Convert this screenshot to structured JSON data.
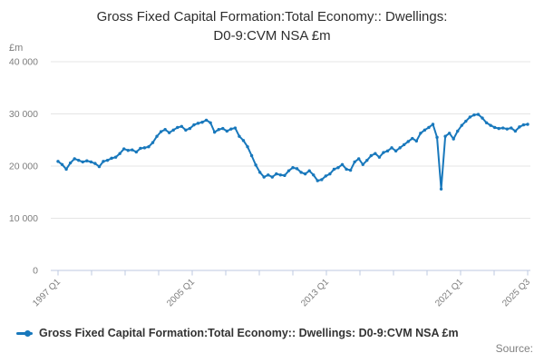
{
  "title_line1": "Gross Fixed Capital Formation:Total Economy:: Dwellings:",
  "title_line2": "D0-9:CVM NSA £m",
  "legend": {
    "label": "Gross Fixed Capital Formation:Total Economy:: Dwellings: D0-9:CVM NSA £m"
  },
  "source_label": "Source:",
  "colors": {
    "line": "#1878bc",
    "grid": "#e4e4e4",
    "axis": "#bcc8e0",
    "tick_label": "#7d7d7d",
    "title": "#2e2e2e"
  },
  "chart_data": {
    "type": "line",
    "title": "Gross Fixed Capital Formation:Total Economy:: Dwellings: D0-9:CVM NSA £m",
    "ylabel_unit": "£m",
    "ylim": [
      0,
      40000
    ],
    "y_ticks": [
      0,
      10000,
      20000,
      30000,
      40000
    ],
    "y_tick_labels": [
      "0",
      "10 000",
      "20 000",
      "30 000",
      "40 000"
    ],
    "x_start": "1997 Q1",
    "x_end": "2025 Q3",
    "frequency": "quarterly",
    "x_tick_count": 15,
    "x_labeled_tick_indices": [
      0,
      4,
      8,
      12,
      14
    ],
    "x_tick_labels": [
      "1997 Q1",
      "2005 Q1",
      "2013 Q1",
      "2021 Q1",
      "2025 Q3"
    ],
    "grid": "horizontal-only",
    "legend_position": "bottom",
    "series": [
      {
        "name": "Gross Fixed Capital Formation:Total Economy:: Dwellings: D0-9:CVM NSA £m",
        "quarters_start": "1997 Q1",
        "values": [
          20900,
          20300,
          19400,
          20600,
          21400,
          21100,
          20800,
          21000,
          20800,
          20500,
          19900,
          20900,
          21100,
          21500,
          21700,
          22400,
          23300,
          23000,
          23100,
          22700,
          23400,
          23500,
          23700,
          24500,
          25700,
          26600,
          27000,
          26400,
          26900,
          27400,
          27600,
          26900,
          27200,
          27900,
          28200,
          28400,
          28800,
          28300,
          26500,
          27000,
          27200,
          26700,
          27100,
          27300,
          25700,
          24900,
          23700,
          22000,
          20200,
          18800,
          17900,
          18300,
          17900,
          18500,
          18300,
          18200,
          19100,
          19700,
          19500,
          18800,
          18500,
          19100,
          18300,
          17200,
          17400,
          18100,
          18500,
          19400,
          19700,
          20300,
          19400,
          19200,
          20800,
          21400,
          20300,
          21100,
          22000,
          22400,
          21700,
          22600,
          22900,
          23500,
          22900,
          23500,
          24100,
          24700,
          25300,
          24800,
          26300,
          26900,
          27400,
          28000,
          25500,
          15600,
          25700,
          26300,
          25200,
          26700,
          27800,
          28600,
          29400,
          29800,
          29900,
          29200,
          28300,
          27800,
          27400,
          27200,
          27300,
          27100,
          27300,
          26700,
          27500,
          27900,
          28000
        ]
      }
    ]
  }
}
